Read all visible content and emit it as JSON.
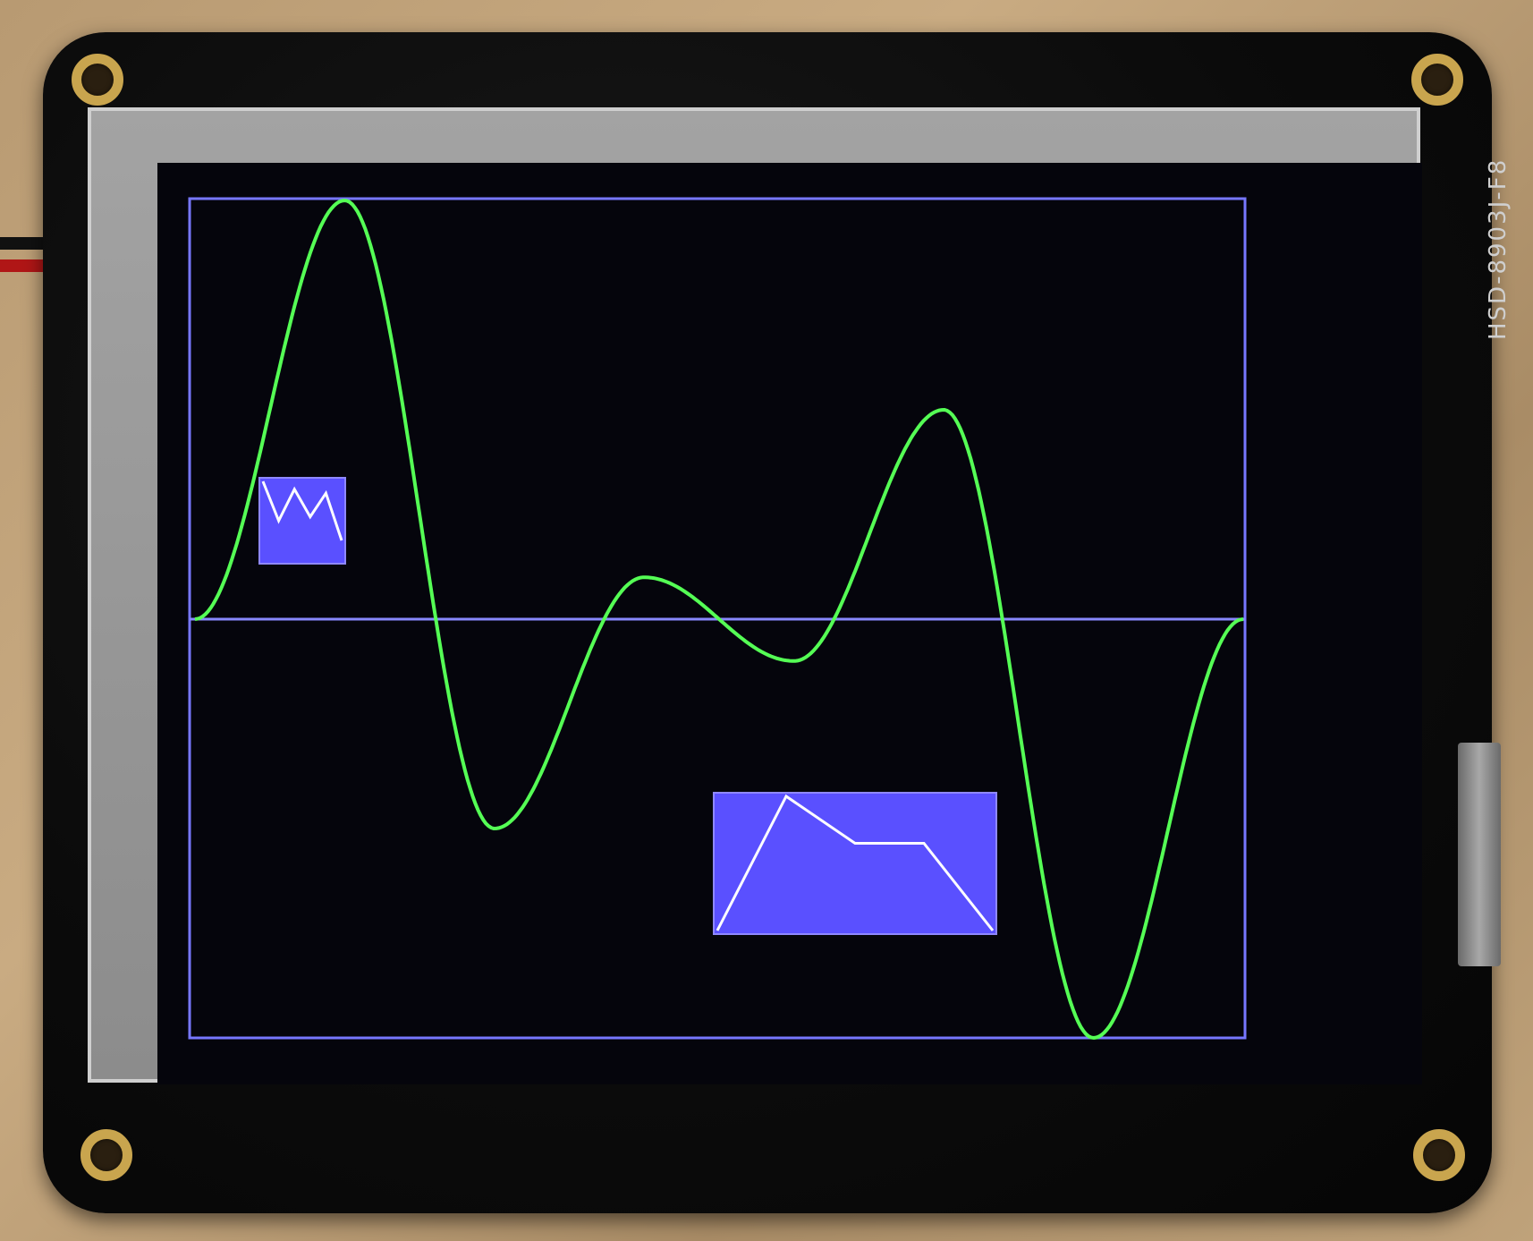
{
  "device": {
    "silkscreen_label": "HSD-8903J-F8",
    "colors": {
      "board": "#0b0b0b",
      "screen": "#05050c",
      "frame": "#7777ff",
      "curve": "#55ff55",
      "inset_fill": "#5a50ff",
      "inset_line": "#ffffff"
    }
  },
  "plot": {
    "main_wave": {
      "series": [
        0,
        1.0,
        -0.5,
        0.1,
        -0.1,
        0.5,
        -1.0,
        0
      ]
    },
    "small_inset": {
      "series": [
        1.0,
        0.5,
        0.9,
        0.55,
        0.85,
        0.25
      ]
    },
    "large_inset": {
      "series": [
        0.0,
        1.0,
        0.65,
        0.65,
        0.0
      ]
    }
  }
}
